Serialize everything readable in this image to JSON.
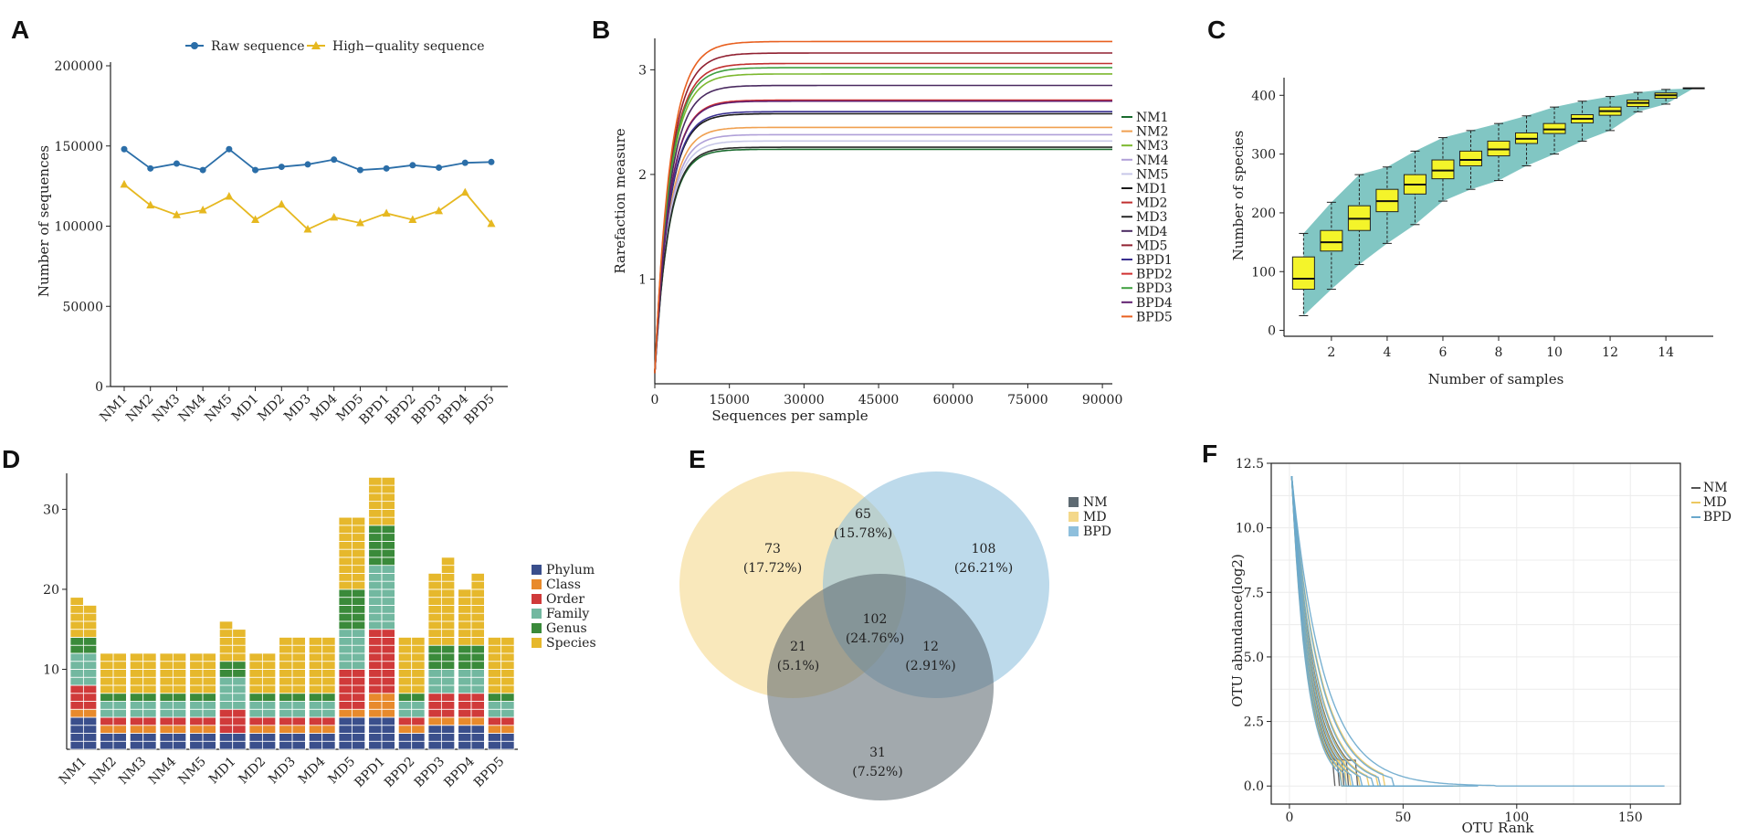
{
  "panel_labels": [
    "A",
    "B",
    "C",
    "D",
    "E",
    "F"
  ],
  "chart_data": [
    {
      "id": "A",
      "type": "line",
      "title": "",
      "xlabel": "",
      "ylabel": "Number of sequences",
      "categories": [
        "NM1",
        "NM2",
        "NM3",
        "NM4",
        "NM5",
        "MD1",
        "MD2",
        "MD3",
        "MD4",
        "MD5",
        "BPD1",
        "BPD2",
        "BPD3",
        "BPD4",
        "BPD5"
      ],
      "ylim": [
        0,
        200000
      ],
      "yticks": [
        "0",
        "50000",
        "100000",
        "150000",
        "200000"
      ],
      "series": [
        {
          "name": "Raw sequence",
          "color": "#2b6ea8",
          "marker": "circle",
          "values": [
            148000,
            136000,
            139000,
            135000,
            148000,
            135000,
            137000,
            138500,
            141500,
            135000,
            136000,
            138000,
            136500,
            139500,
            140000
          ]
        },
        {
          "name": "High−quality sequence",
          "color": "#e6b820",
          "marker": "triangle",
          "values": [
            126000,
            113000,
            107000,
            110000,
            118500,
            104000,
            113500,
            98000,
            105500,
            102000,
            108000,
            104000,
            109500,
            121000,
            101500
          ]
        }
      ]
    },
    {
      "id": "B",
      "type": "line",
      "title": "",
      "xlabel": "Sequences per sample",
      "ylabel": "Rarefaction measure",
      "xlim": [
        0,
        92000
      ],
      "ylim": [
        0,
        3.3
      ],
      "xticks": [
        0,
        15000,
        30000,
        45000,
        60000,
        75000,
        90000
      ],
      "xtick_labels": [
        "0",
        "15000",
        "30000",
        "45000",
        "60000",
        "75000",
        "90000"
      ],
      "yticks": [
        1,
        2,
        3
      ],
      "ytick_labels": [
        "1",
        "2",
        "3"
      ],
      "plateau_start": 17000,
      "series": [
        {
          "name": "NM1",
          "color": "#1a6b2e",
          "final": 2.24
        },
        {
          "name": "NM2",
          "color": "#f0a050",
          "final": 2.45
        },
        {
          "name": "NM3",
          "color": "#7cb82e",
          "final": 2.96
        },
        {
          "name": "NM4",
          "color": "#b0a0d8",
          "final": 2.38
        },
        {
          "name": "NM5",
          "color": "#c8c8e8",
          "final": 2.32
        },
        {
          "name": "MD1",
          "color": "#1a1a1a",
          "final": 2.58
        },
        {
          "name": "MD2",
          "color": "#c03030",
          "final": 3.06
        },
        {
          "name": "MD3",
          "color": "#2a2a2a",
          "final": 2.26
        },
        {
          "name": "MD4",
          "color": "#4a2a60",
          "final": 2.85
        },
        {
          "name": "MD5",
          "color": "#902030",
          "final": 3.16
        },
        {
          "name": "BPD1",
          "color": "#3a3090",
          "final": 2.6
        },
        {
          "name": "BPD2",
          "color": "#d03030",
          "final": 2.71
        },
        {
          "name": "BPD3",
          "color": "#40a040",
          "final": 3.02
        },
        {
          "name": "BPD4",
          "color": "#602070",
          "final": 2.7
        },
        {
          "name": "BPD5",
          "color": "#e86020",
          "final": 3.27
        }
      ]
    },
    {
      "id": "C",
      "type": "box",
      "title": "",
      "xlabel": "Number of samples",
      "ylabel": "Number of species",
      "xlim": [
        0.3,
        15.7
      ],
      "ylim": [
        -10,
        430
      ],
      "xticks": [
        2,
        4,
        6,
        8,
        10,
        12,
        14
      ],
      "xtick_labels": [
        "2",
        "4",
        "6",
        "8",
        "10",
        "12",
        "14"
      ],
      "yticks": [
        0,
        100,
        200,
        300,
        400
      ],
      "ytick_labels": [
        "0",
        "100",
        "200",
        "300",
        "400"
      ],
      "box_color": "#f4f42a",
      "band_color": "#6bbcb8",
      "boxes": [
        {
          "n": 1,
          "min": 25,
          "q1": 70,
          "median": 88,
          "q3": 125,
          "max": 165
        },
        {
          "n": 2,
          "min": 70,
          "q1": 135,
          "median": 150,
          "q3": 170,
          "max": 218
        },
        {
          "n": 3,
          "min": 112,
          "q1": 170,
          "median": 190,
          "q3": 212,
          "max": 265
        },
        {
          "n": 4,
          "min": 148,
          "q1": 202,
          "median": 220,
          "q3": 240,
          "max": 278
        },
        {
          "n": 5,
          "min": 180,
          "q1": 232,
          "median": 248,
          "q3": 265,
          "max": 305
        },
        {
          "n": 6,
          "min": 220,
          "q1": 258,
          "median": 272,
          "q3": 290,
          "max": 328
        },
        {
          "n": 7,
          "min": 240,
          "q1": 280,
          "median": 290,
          "q3": 305,
          "max": 340
        },
        {
          "n": 8,
          "min": 255,
          "q1": 297,
          "median": 308,
          "q3": 322,
          "max": 352
        },
        {
          "n": 9,
          "min": 280,
          "q1": 318,
          "median": 326,
          "q3": 336,
          "max": 365
        },
        {
          "n": 10,
          "min": 300,
          "q1": 335,
          "median": 342,
          "q3": 352,
          "max": 380
        },
        {
          "n": 11,
          "min": 322,
          "q1": 353,
          "median": 360,
          "q3": 367,
          "max": 390
        },
        {
          "n": 12,
          "min": 340,
          "q1": 366,
          "median": 373,
          "q3": 380,
          "max": 398
        },
        {
          "n": 13,
          "min": 372,
          "q1": 381,
          "median": 387,
          "q3": 392,
          "max": 405
        },
        {
          "n": 14,
          "min": 385,
          "q1": 395,
          "median": 400,
          "q3": 404,
          "max": 410
        },
        {
          "n": 15,
          "min": 412,
          "q1": 412,
          "median": 412,
          "q3": 412,
          "max": 412
        }
      ]
    },
    {
      "id": "D",
      "type": "bar",
      "stacked": true,
      "title": "",
      "xlabel": "",
      "ylabel": "",
      "ylim": [
        0,
        34.5
      ],
      "yticks": [
        10,
        20,
        30
      ],
      "ytick_labels": [
        "10",
        "20",
        "30"
      ],
      "categories": [
        "NM1",
        "NM2",
        "NM3",
        "NM4",
        "NM5",
        "MD1",
        "MD2",
        "MD3",
        "MD4",
        "MD5",
        "BPD1",
        "BPD2",
        "BPD3",
        "BPD4",
        "BPD5"
      ],
      "series": [
        {
          "name": "Phylum",
          "color": "#3a4f8c",
          "values": [
            4,
            2,
            2,
            2,
            2,
            2,
            2,
            2,
            2,
            4,
            4,
            2,
            3,
            3,
            2
          ]
        },
        {
          "name": "Class",
          "color": "#e88a2c",
          "values": [
            1,
            1,
            1,
            1,
            1,
            0,
            1,
            1,
            1,
            1,
            3,
            1,
            1,
            1,
            1
          ]
        },
        {
          "name": "Order",
          "color": "#d03a3a",
          "values": [
            3,
            1,
            1,
            1,
            1,
            3,
            1,
            1,
            1,
            5,
            8,
            1,
            3,
            3,
            1
          ]
        },
        {
          "name": "Family",
          "color": "#72b8a0",
          "values": [
            4,
            2,
            2,
            2,
            2,
            4,
            2,
            2,
            2,
            5,
            8,
            2,
            3,
            3,
            2
          ]
        },
        {
          "name": "Genus",
          "color": "#3a8a3a",
          "values": [
            2,
            1,
            1,
            1,
            1,
            2,
            1,
            1,
            1,
            5,
            5,
            1,
            3,
            3,
            1
          ]
        },
        {
          "name": "Species",
          "color": "#e6b82c",
          "values": [
            5,
            5,
            5,
            5,
            5,
            5,
            5,
            7,
            7,
            9,
            6,
            7,
            9,
            7,
            7
          ]
        }
      ],
      "second_bar_totals": [
        18,
        12,
        12,
        12,
        12,
        15,
        12,
        14,
        14,
        29,
        34,
        14,
        24,
        22,
        14
      ]
    },
    {
      "id": "E",
      "type": "venn",
      "sets": [
        {
          "name": "NM",
          "color": "#5e6a72"
        },
        {
          "name": "MD",
          "color": "#f4d88a"
        },
        {
          "name": "BPD",
          "color": "#8ebfdc"
        }
      ],
      "regions": [
        {
          "count": "73",
          "pct": "(17.72%)",
          "set": "MD only"
        },
        {
          "count": "108",
          "pct": "(26.21%)",
          "set": "BPD only"
        },
        {
          "count": "31",
          "pct": "(7.52%)",
          "set": "NM only"
        },
        {
          "count": "65",
          "pct": "(15.78%)",
          "set": "MD & BPD"
        },
        {
          "count": "21",
          "pct": "(5.1%)",
          "set": "MD & NM"
        },
        {
          "count": "12",
          "pct": "(2.91%)",
          "set": "BPD & NM"
        },
        {
          "count": "102",
          "pct": "(24.76%)",
          "set": "MD & BPD & NM"
        }
      ]
    },
    {
      "id": "F",
      "type": "line",
      "title": "",
      "xlabel": "OTU Rank",
      "ylabel": "OTU abundance(log2)",
      "xlim": [
        -8,
        172
      ],
      "ylim": [
        -0.7,
        12.5
      ],
      "xticks": [
        0,
        50,
        100,
        150
      ],
      "xtick_labels": [
        "0",
        "50",
        "100",
        "150"
      ],
      "yticks": [
        0,
        2.5,
        5,
        7.5,
        10,
        12.5
      ],
      "ytick_labels": [
        "0.0",
        "2.5",
        "5.0",
        "7.5",
        "10.0",
        "12.5"
      ],
      "series": [
        {
          "name": "NM",
          "color": "#555555",
          "tail_ranks": [
            20,
            22,
            24,
            26,
            30
          ]
        },
        {
          "name": "MD",
          "color": "#ecc860",
          "tail_ranks": [
            38,
            42,
            48,
            55,
            62,
            70,
            75
          ]
        },
        {
          "name": "BPD",
          "color": "#6aa8cc",
          "tail_ranks": [
            40,
            45,
            50,
            58,
            66,
            72,
            83,
            165
          ]
        }
      ]
    }
  ]
}
